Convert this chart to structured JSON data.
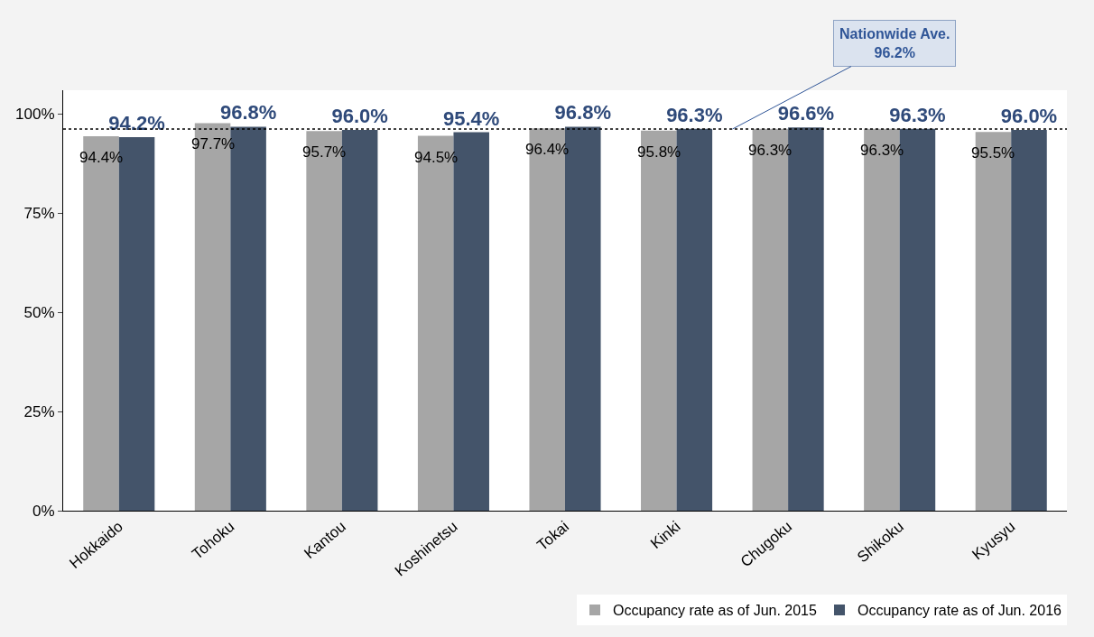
{
  "chart_data": {
    "type": "bar",
    "categories": [
      "Hokkaido",
      "Tohoku",
      "Kantou",
      "Koshinetsu",
      "Tokai",
      "Kinki",
      "Chugoku",
      "Shikoku",
      "Kyusyu"
    ],
    "series": [
      {
        "name": "Occupancy rate as of Jun. 2015",
        "color": "#a6a6a6",
        "values": [
          94.4,
          97.7,
          95.7,
          94.5,
          96.4,
          95.8,
          96.3,
          96.3,
          95.5
        ],
        "value_labels": [
          "94.4%",
          "97.7%",
          "95.7%",
          "94.5%",
          "96.4%",
          "95.8%",
          "96.3%",
          "96.3%",
          "95.5%"
        ]
      },
      {
        "name": "Occupancy rate as of Jun. 2016",
        "color": "#44546a",
        "values": [
          94.2,
          96.8,
          96.0,
          95.4,
          96.8,
          96.3,
          96.6,
          96.3,
          96.0
        ],
        "value_labels": [
          "94.2%",
          "96.8%",
          "96.0%",
          "95.4%",
          "96.8%",
          "96.3%",
          "96.6%",
          "96.3%",
          "96.0%"
        ]
      }
    ],
    "ylim": [
      0,
      106
    ],
    "yticks": [
      {
        "value": 0,
        "label": "0%"
      },
      {
        "value": 25,
        "label": "25%"
      },
      {
        "value": 50,
        "label": "50%"
      },
      {
        "value": 75,
        "label": "75%"
      },
      {
        "value": 100,
        "label": "100%"
      }
    ],
    "ref_lines": [
      {
        "axis": "y",
        "value": 96.2,
        "label": "Nationwide Ave.\n96.2%",
        "color": "#000000",
        "line_style": "dotted"
      }
    ],
    "legend": "bottom right"
  }
}
